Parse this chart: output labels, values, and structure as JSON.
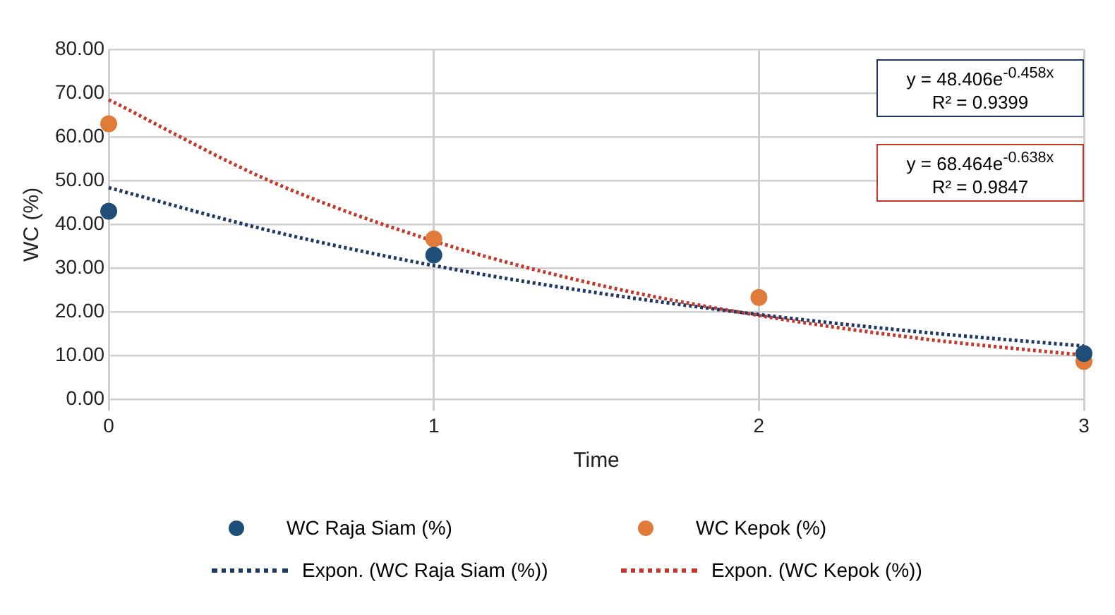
{
  "chart_data": {
    "type": "scatter",
    "xlabel": "Time",
    "ylabel": "WC (%)",
    "x": [
      0,
      1,
      2,
      3
    ],
    "xlim": [
      0,
      3
    ],
    "xticks": [
      0,
      1,
      2,
      3
    ],
    "ylim": [
      0,
      80
    ],
    "yticks": [
      {
        "value": 0,
        "label": "0.00"
      },
      {
        "value": 10,
        "label": "10.00"
      },
      {
        "value": 20,
        "label": "20.00"
      },
      {
        "value": 30,
        "label": "30.00"
      },
      {
        "value": 40,
        "label": "40.00"
      },
      {
        "value": 50,
        "label": "50.00"
      },
      {
        "value": 60,
        "label": "60.00"
      },
      {
        "value": 70,
        "label": "70.00"
      },
      {
        "value": 80,
        "label": "80.00"
      }
    ],
    "grid": true,
    "legend": "bottom",
    "marker": "circle",
    "series": [
      {
        "name": "WC Raja Siam (%)",
        "color": "#1f4e79",
        "values": [
          43,
          33,
          null,
          10.5
        ]
      },
      {
        "name": "WC Kepok (%)",
        "color": "#e07b39",
        "values": [
          63,
          36.7,
          23.3,
          8.7
        ]
      },
      {
        "name": "Expon. (WC Raja Siam (%))",
        "type": "line",
        "marker": "none",
        "line_style": "dotted",
        "color": "#1f3864",
        "x": [
          0,
          0.5,
          1,
          1.5,
          2,
          2.5,
          3
        ],
        "values": [
          48.4,
          38.5,
          30.6,
          24.4,
          19.4,
          15.4,
          12.2
        ]
      },
      {
        "name": "Expon. (WC Kepok (%))",
        "type": "line",
        "marker": "none",
        "line_style": "dotted",
        "color": "#c0392b",
        "x": [
          0,
          0.5,
          1,
          1.5,
          2,
          2.5,
          3
        ],
        "values": [
          68.5,
          49.8,
          36.2,
          26.3,
          19.2,
          13.9,
          10.1
        ]
      }
    ],
    "annotations": [
      "y = 48.406e$^{-0.458x}$",
      "R² = 0.9399",
      "y = 68.464e$^{-0.638x}$",
      "R² = 0.9847"
    ]
  }
}
